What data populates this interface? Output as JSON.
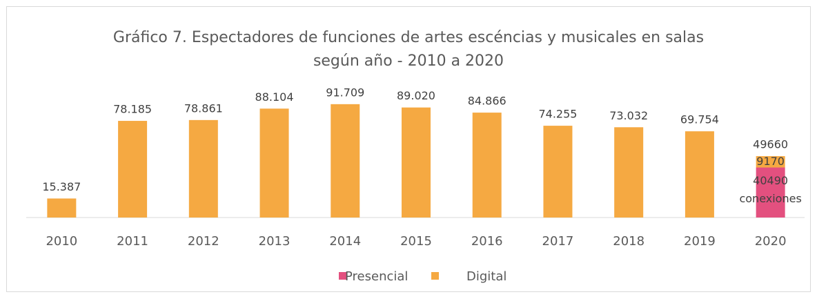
{
  "chart_data": {
    "type": "stacked_bar",
    "title": "Gráfico 7. Espectadores de funciones de artes escéncias y musicales en salas",
    "subtitle": "según año - 2010 a 2020",
    "categories": [
      "2010",
      "2011",
      "2012",
      "2013",
      "2014",
      "2015",
      "2016",
      "2017",
      "2018",
      "2019",
      "2020"
    ],
    "series": [
      {
        "name": "Presencial",
        "color": "#e3507f",
        "values": [
          null,
          null,
          null,
          null,
          null,
          null,
          null,
          null,
          null,
          null,
          40490
        ],
        "value_labels": [
          null,
          null,
          null,
          null,
          null,
          null,
          null,
          null,
          null,
          null,
          "40490"
        ]
      },
      {
        "name": "Digital",
        "color": "#f5a942",
        "values": [
          15387,
          78185,
          78861,
          88104,
          91709,
          89020,
          84866,
          74255,
          73032,
          69754,
          9170
        ],
        "value_labels": [
          "15.387",
          "78.185",
          "78.861",
          "88.104",
          "91.709",
          "89.020",
          "84.866",
          "74.255",
          "73.032",
          "69.754",
          "9170"
        ]
      }
    ],
    "annotations": [
      "49660",
      "conexiones"
    ],
    "ylim": [
      0,
      100000
    ],
    "legend": "bottom"
  }
}
